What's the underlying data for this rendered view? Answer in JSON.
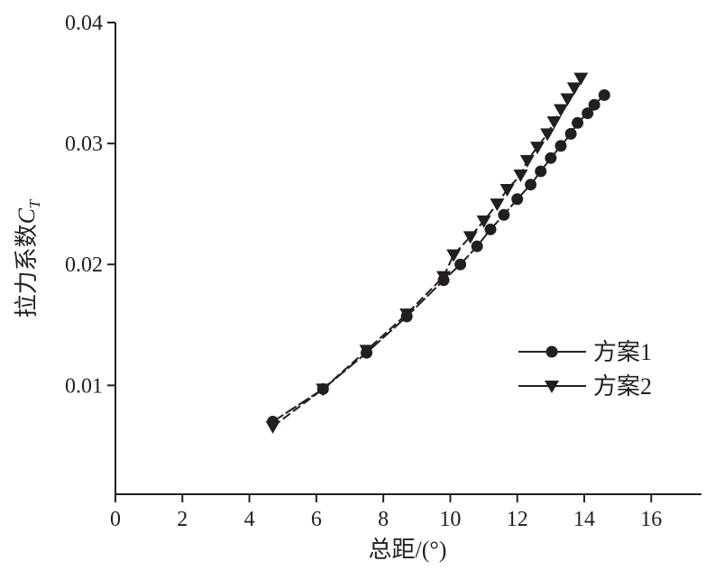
{
  "chart_data": {
    "type": "line",
    "xlabel": "总距/(°)",
    "ylabel": "拉力系数",
    "ylabel_symbol": "C",
    "ylabel_subscript": "T",
    "xlim": [
      0,
      17.5
    ],
    "ylim": [
      0.001,
      0.04
    ],
    "xticks": [
      0,
      2,
      4,
      6,
      8,
      10,
      12,
      14,
      16
    ],
    "yticks": [
      0.01,
      0.02,
      0.03,
      0.04
    ],
    "ytick_labels": [
      "0.01",
      "0.02",
      "0.03",
      "0.04"
    ],
    "grid": false,
    "legend_position": "center-right",
    "series": [
      {
        "name": "方案1",
        "marker": "circle",
        "color": "#231f20",
        "x": [
          4.7,
          6.2,
          7.5,
          8.7,
          9.8,
          10.3,
          10.8,
          11.2,
          11.6,
          12.0,
          12.4,
          12.7,
          13.0,
          13.3,
          13.6,
          13.8,
          14.1,
          14.3,
          14.6
        ],
        "y": [
          0.007,
          0.0097,
          0.0127,
          0.0157,
          0.0187,
          0.02,
          0.0215,
          0.0229,
          0.0241,
          0.0254,
          0.0266,
          0.0277,
          0.0288,
          0.0298,
          0.0308,
          0.0317,
          0.0325,
          0.0332,
          0.034
        ]
      },
      {
        "name": "方案2",
        "marker": "triangle-down",
        "color": "#231f20",
        "x": [
          4.7,
          6.2,
          7.5,
          8.7,
          9.8,
          10.1,
          10.6,
          11.0,
          11.4,
          11.7,
          12.1,
          12.3,
          12.6,
          12.9,
          13.1,
          13.3,
          13.5,
          13.7,
          13.9
        ],
        "y": [
          0.0066,
          0.0097,
          0.0129,
          0.0159,
          0.019,
          0.0208,
          0.0223,
          0.0236,
          0.025,
          0.0262,
          0.0274,
          0.0286,
          0.0297,
          0.0308,
          0.0318,
          0.0328,
          0.0337,
          0.0346,
          0.0354
        ]
      }
    ]
  }
}
